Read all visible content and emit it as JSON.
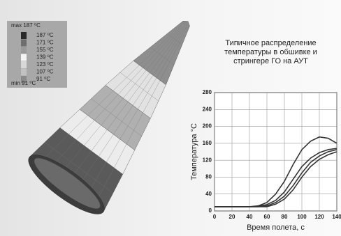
{
  "legend": {
    "max": "max 187 ⁰C",
    "min": "min 91 ⁰C",
    "items": [
      "187 ⁰C",
      "171 ⁰C",
      "155 ⁰C",
      "139 ⁰C",
      "123 ⁰C",
      "107 ⁰C",
      "91 ⁰C"
    ],
    "colors": [
      "#2a2a2a",
      "#6e6e6e",
      "#9a9a9a",
      "#f4f4f4",
      "#d8d8d8",
      "#c2c2c2",
      "#8a8a8a"
    ]
  },
  "chart_data": {
    "type": "line",
    "title": "Типичное распределение\nтемпературы в обшивке и\nстрингере ГО на АУТ",
    "x_label": "Время полета, с",
    "y_label": "Температура °С",
    "x": [
      0,
      40,
      50,
      60,
      70,
      80,
      90,
      100,
      110,
      120,
      130,
      140
    ],
    "series": [
      {
        "color": "#333333",
        "values": [
          10,
          10,
          12,
          20,
          40,
          70,
          110,
          145,
          165,
          175,
          172,
          160
        ]
      },
      {
        "color": "#333333",
        "values": [
          10,
          10,
          11,
          15,
          25,
          45,
          75,
          105,
          125,
          138,
          145,
          148
        ]
      },
      {
        "color": "#333333",
        "values": [
          10,
          10,
          10,
          12,
          20,
          35,
          60,
          90,
          115,
          130,
          140,
          145
        ]
      },
      {
        "color": "#333333",
        "values": [
          10,
          10,
          10,
          10,
          16,
          28,
          50,
          80,
          105,
          122,
          133,
          140
        ]
      }
    ],
    "xlim": [
      0,
      140
    ],
    "xticks": [
      0,
      20,
      40,
      60,
      80,
      100,
      120,
      140
    ],
    "ylim": [
      0,
      280
    ],
    "yticks": [
      0,
      40,
      80,
      120,
      160,
      200,
      240,
      280
    ],
    "grid": true
  }
}
